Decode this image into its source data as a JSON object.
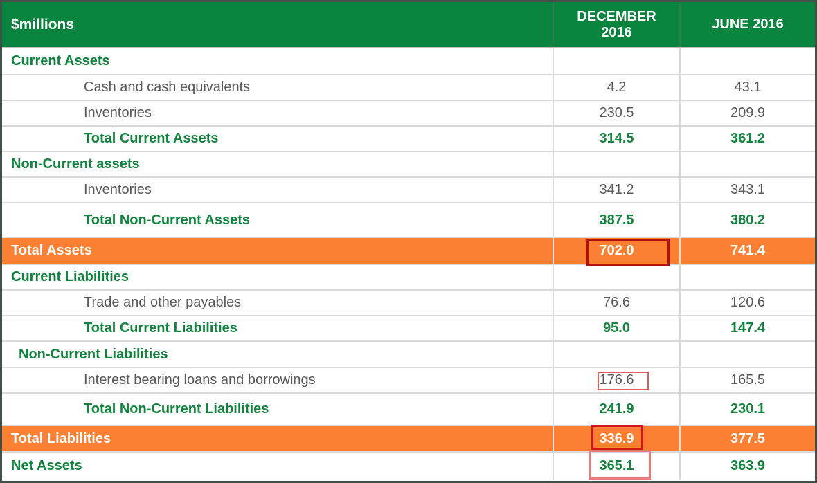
{
  "table_title_unit": "$millions",
  "columns": {
    "label": "$millions",
    "december": "DECEMBER 2016",
    "june": "JUNE 2016"
  },
  "colors": {
    "header_green": "#08843e",
    "text_green": "#13833f",
    "total_orange": "#fb8033",
    "item_gray": "#595959",
    "gridline": "#d9d9d9",
    "outer_border": "#3f5147",
    "annotation_red": "#b40f0f"
  },
  "rows": [
    {
      "label": "Current Assets",
      "dec": "",
      "june": "",
      "type": "section"
    },
    {
      "label": "Cash and cash equivalents",
      "dec": "4.2",
      "june": "43.1",
      "type": "item"
    },
    {
      "label": "Inventories",
      "dec": "230.5",
      "june": "209.9",
      "type": "item"
    },
    {
      "label": "Total Current Assets",
      "dec": "314.5",
      "june": "361.2",
      "type": "subtotal"
    },
    {
      "label": "Non-Current assets",
      "dec": "",
      "june": "",
      "type": "section"
    },
    {
      "label": "Inventories",
      "dec": "341.2",
      "june": "343.1",
      "type": "item"
    },
    {
      "label": "Total Non-Current Assets",
      "dec": "387.5",
      "june": "380.2",
      "type": "subtotal"
    },
    {
      "label": "Total Assets",
      "dec": "702.0",
      "june": "741.4",
      "type": "total",
      "dec_highlight": "red-box-large"
    },
    {
      "label": "Current Liabilities",
      "dec": "",
      "june": "",
      "type": "section"
    },
    {
      "label": "Trade and other payables",
      "dec": "76.6",
      "june": "120.6",
      "type": "item"
    },
    {
      "label": "Total Current Liabilities",
      "dec": "95.0",
      "june": "147.4",
      "type": "subtotal"
    },
    {
      "label": "Non-Current Liabilities",
      "dec": "",
      "june": "",
      "type": "section"
    },
    {
      "label": "Interest bearing loans and borrowings",
      "dec": "176.6",
      "june": "165.5",
      "type": "item",
      "dec_highlight": "red-box-tight"
    },
    {
      "label": "Total Non-Current Liabilities",
      "dec": "241.9",
      "june": "230.1",
      "type": "subtotal"
    },
    {
      "label": "Total Liabilities",
      "dec": "336.9",
      "june": "377.5",
      "type": "total",
      "dec_highlight": "red-box-medium"
    },
    {
      "label": "Net Assets",
      "dec": "365.1",
      "june": "363.9",
      "type": "net",
      "dec_highlight": "red-box-offset"
    }
  ]
}
